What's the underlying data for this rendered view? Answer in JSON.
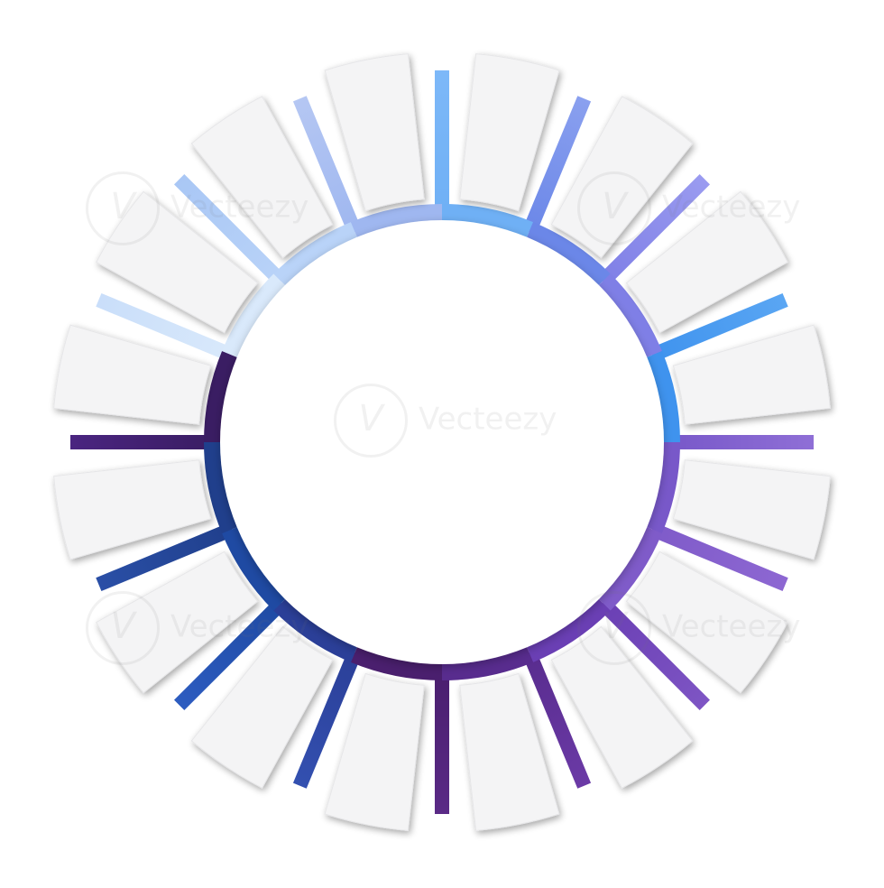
{
  "diagram": {
    "segments": 16,
    "tab_fill": "#f4f4f5",
    "tab_shadow": "#c9c9cc",
    "rays": [
      {
        "from": "#6fb0f5",
        "to": "#7db8f8"
      },
      {
        "from": "#6b87e8",
        "to": "#8aa0ef"
      },
      {
        "from": "#7f7fe6",
        "to": "#9a9bf0"
      },
      {
        "from": "#3f93ee",
        "to": "#5aa6f3"
      },
      {
        "from": "#7858c9",
        "to": "#8f6fd6"
      },
      {
        "from": "#7f5bc9",
        "to": "#8d67d2"
      },
      {
        "from": "#6a3fb4",
        "to": "#7e55c4"
      },
      {
        "from": "#582c8e",
        "to": "#6b3aa6"
      },
      {
        "from": "#4a1f6e",
        "to": "#5a2a86"
      },
      {
        "from": "#2b3f98",
        "to": "#3350b0"
      },
      {
        "from": "#1f4aa3",
        "to": "#2d5cc0"
      },
      {
        "from": "#203f8c",
        "to": "#2a4fa6"
      },
      {
        "from": "#3a1d63",
        "to": "#4a2580"
      },
      {
        "from": "#d9e9fb",
        "to": "#c9defa"
      },
      {
        "from": "#b9d3f8",
        "to": "#a9c7f5"
      },
      {
        "from": "#9fb7f0",
        "to": "#b5c7f3"
      }
    ]
  },
  "watermark": {
    "brand": "Vecteezy",
    "glyph": "V"
  }
}
